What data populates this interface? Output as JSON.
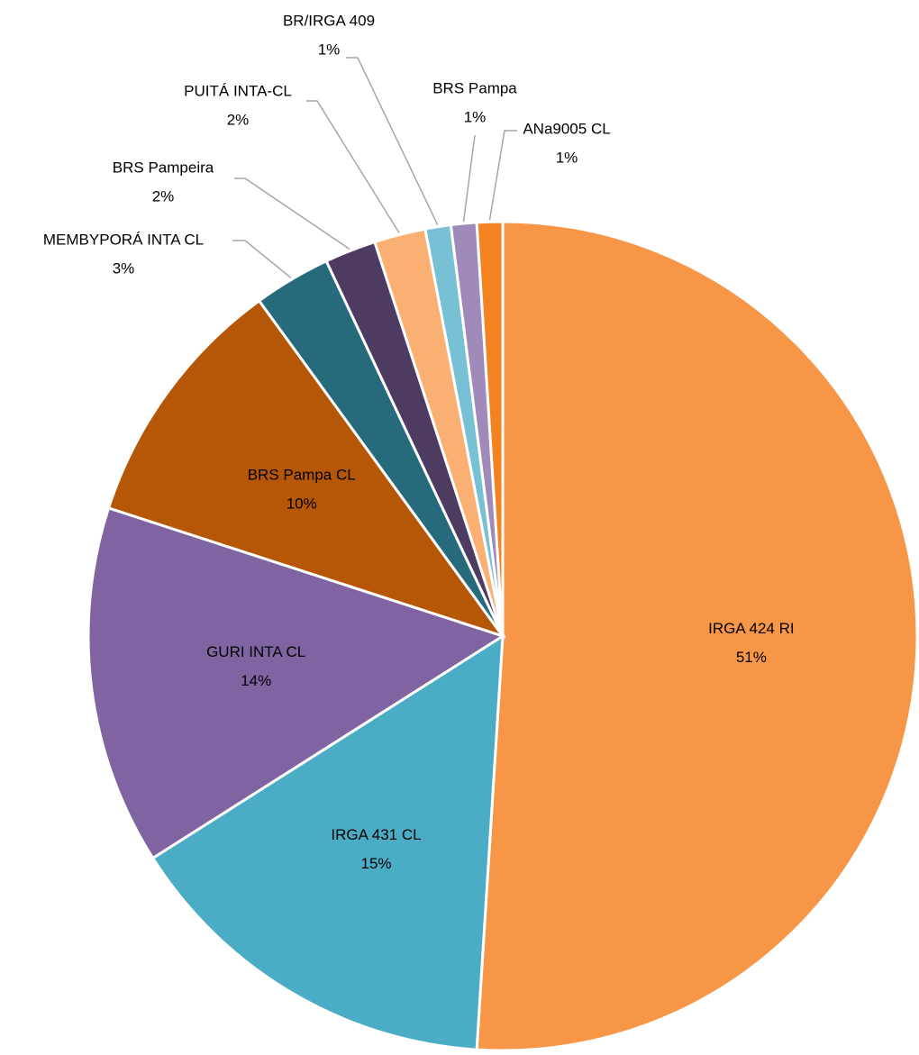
{
  "chart_data": {
    "type": "pie",
    "categories": [
      "IRGA 424 RI",
      "IRGA 431 CL",
      "GURI INTA CL",
      "BRS Pampa CL",
      "MEMBYPORÁ INTA CL",
      "BRS Pampeira",
      "PUITÁ INTA-CL",
      "BR/IRGA 409",
      "BRS Pampa",
      "ANa9005 CL"
    ],
    "values": [
      51,
      15,
      14,
      10,
      3,
      2,
      2,
      1,
      1,
      1
    ],
    "value_labels": [
      "51%",
      "15%",
      "14%",
      "10%",
      "3%",
      "2%",
      "2%",
      "1%",
      "1%",
      "1%"
    ],
    "colors": [
      "#f79646",
      "#4bacc6",
      "#8064a2",
      "#b65708",
      "#276a7c",
      "#4d3b62",
      "#fab072",
      "#78c0d4",
      "#9f8ab9",
      "#f58220"
    ]
  }
}
